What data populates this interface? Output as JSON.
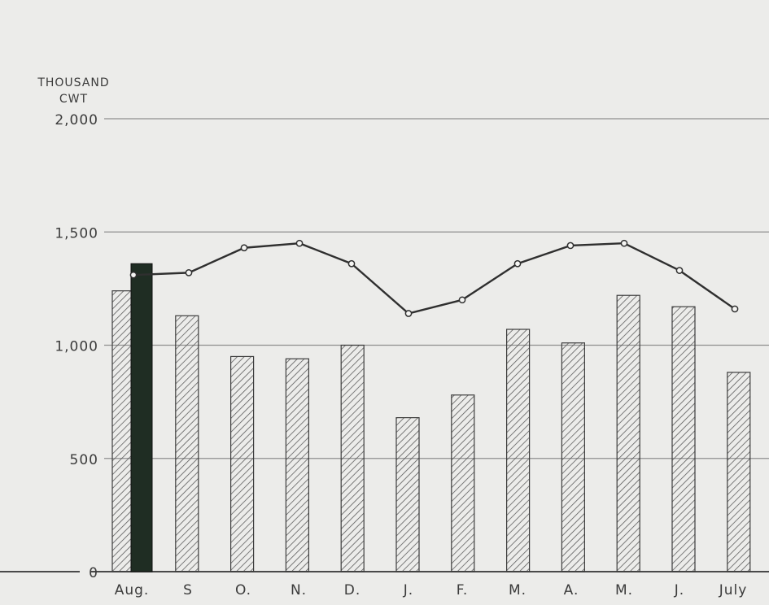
{
  "chart_data": {
    "type": "bar",
    "ylabel": [
      "THOUSAND",
      "CWT"
    ],
    "xlabel": "",
    "title": "",
    "categories": [
      "Aug.",
      "S",
      "O.",
      "N.",
      "D.",
      "J.",
      "F.",
      "M.",
      "A.",
      "M.",
      "J.",
      "July"
    ],
    "yticks": [
      {
        "value": 0,
        "label": "0"
      },
      {
        "value": 500,
        "label": "500"
      },
      {
        "value": 1000,
        "label": "1,000"
      },
      {
        "value": 1500,
        "label": "1,500"
      },
      {
        "value": 2000,
        "label": "2,000"
      }
    ],
    "ylim": [
      0,
      2000
    ],
    "grid": true,
    "series": [
      {
        "type": "bar",
        "fill": "hatched",
        "values": [
          1240,
          1130,
          950,
          940,
          1000,
          680,
          780,
          1070,
          1010,
          1220,
          1170,
          880
        ]
      },
      {
        "type": "bar",
        "fill": "solid",
        "values": [
          1360,
          null,
          null,
          null,
          null,
          null,
          null,
          null,
          null,
          null,
          null,
          null
        ]
      },
      {
        "type": "line",
        "values": [
          1310,
          1320,
          1430,
          1450,
          1360,
          1140,
          1200,
          1360,
          1440,
          1450,
          1330,
          1160
        ]
      }
    ],
    "colors": {
      "background": "#ececea",
      "grid": "#8f8f8f",
      "bar_outline": "#3d3d3d",
      "hatch": "#555555",
      "solid_bar": "#1f2d23",
      "line": "#2f2f2f",
      "marker_fill": "#f5f5f3",
      "text": "#3b3b3b"
    }
  }
}
